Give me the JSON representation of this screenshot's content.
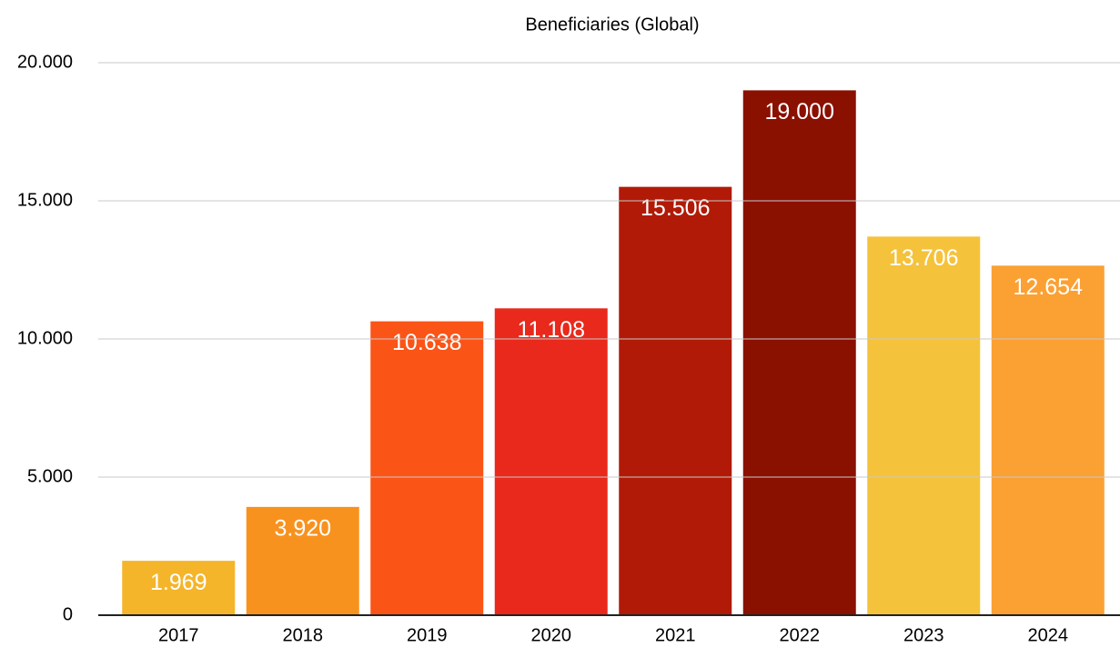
{
  "chart_data": {
    "type": "bar",
    "title": "Beneficiaries (Global)",
    "categories": [
      "2017",
      "2018",
      "2019",
      "2020",
      "2021",
      "2022",
      "2023",
      "2024"
    ],
    "values": [
      1969,
      3920,
      10638,
      11108,
      15506,
      19000,
      13706,
      12654
    ],
    "value_labels": [
      "1.969",
      "3.920",
      "10.638",
      "11.108",
      "15.506",
      "19.000",
      "13.706",
      "12.654"
    ],
    "colors": [
      "#f4b52b",
      "#f8921f",
      "#fb5417",
      "#e8291b",
      "#b11a07",
      "#8a1000",
      "#f5c23b",
      "#fba033"
    ],
    "ylim": [
      0,
      20000
    ],
    "yticks": [
      0,
      {
        "value": 5000,
        "label": "5.000"
      },
      {
        "value": 10000,
        "label": "10.000"
      },
      {
        "value": 15000,
        "label": "15.000"
      },
      {
        "value": 20000,
        "label": "20.000"
      }
    ],
    "grid": true
  }
}
